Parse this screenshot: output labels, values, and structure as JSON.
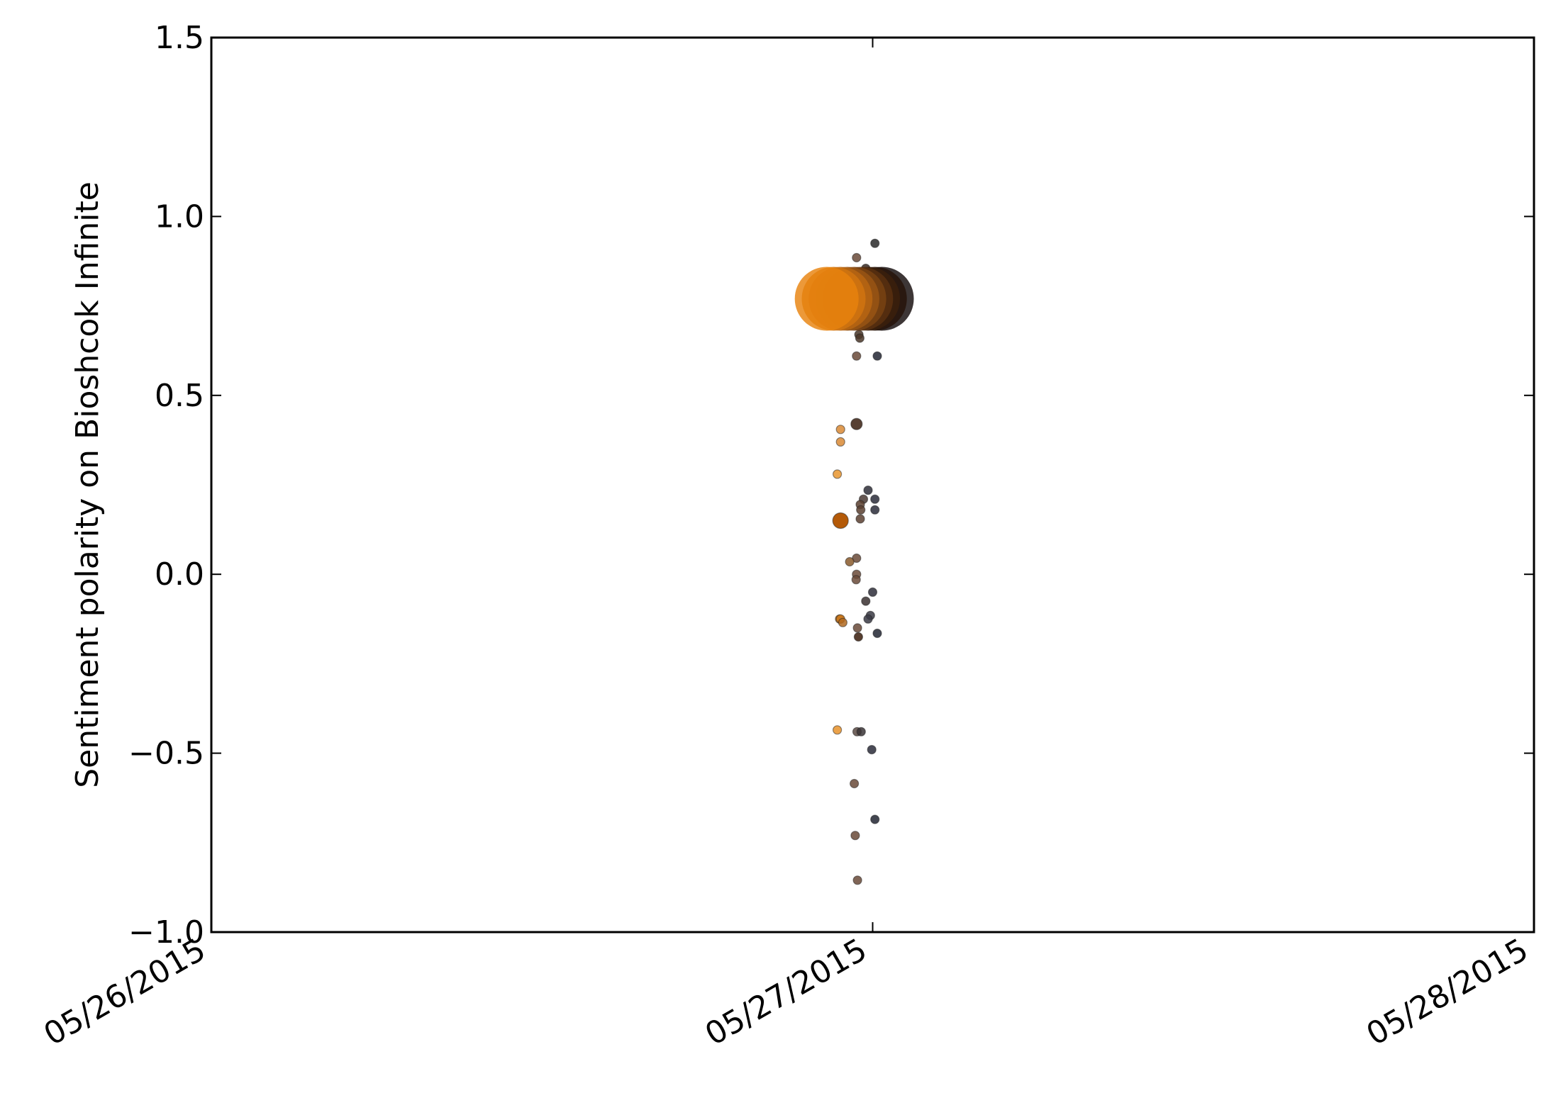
{
  "chart_data": {
    "type": "scatter",
    "title": "",
    "xlabel": "",
    "ylabel": "Sentiment polarity on Bioshcok Infinite",
    "xlim": [
      "05/26/2015 00:00",
      "05/28/2015 00:00"
    ],
    "ylim": [
      -1.0,
      1.5
    ],
    "xticks": [
      "05/26/2015",
      "05/27/2015",
      "05/28/2015"
    ],
    "yticks": [
      "1.5",
      "1.0",
      "0.5",
      "0.0",
      "−0.5",
      "−1.0"
    ],
    "grid": false,
    "legend": "none",
    "color_map": {
      "early": "#e8820e",
      "late": "#0a0a0a"
    },
    "points": [
      {
        "x": "05/26/2015 22:20",
        "y": 0.77,
        "size": "large",
        "color": "#e8820e"
      },
      {
        "x": "05/26/2015 22:35",
        "y": 0.77,
        "size": "large",
        "color": "#d27510"
      },
      {
        "x": "05/26/2015 22:50",
        "y": 0.77,
        "size": "large",
        "color": "#b96612"
      },
      {
        "x": "05/26/2015 23:05",
        "y": 0.77,
        "size": "large",
        "color": "#9a5514"
      },
      {
        "x": "05/26/2015 23:20",
        "y": 0.77,
        "size": "large",
        "color": "#7a4312"
      },
      {
        "x": "05/26/2015 23:35",
        "y": 0.77,
        "size": "large",
        "color": "#5a3110"
      },
      {
        "x": "05/26/2015 23:50",
        "y": 0.77,
        "size": "large",
        "color": "#3c200c"
      },
      {
        "x": "05/27/2015 00:05",
        "y": 0.77,
        "size": "large",
        "color": "#241208"
      },
      {
        "x": "05/27/2015 00:20",
        "y": 0.77,
        "size": "large",
        "color": "#120a0a"
      },
      {
        "x": "05/26/2015 23:25",
        "y": 0.885,
        "size": "small",
        "color": "#6a4a38"
      },
      {
        "x": "05/26/2015 23:45",
        "y": 0.855,
        "size": "small",
        "color": "#3a2a22"
      },
      {
        "x": "05/27/2015 00:05",
        "y": 0.925,
        "size": "small",
        "color": "#2a2a2a"
      },
      {
        "x": "05/26/2015 23:05",
        "y": 0.695,
        "size": "small",
        "color": "#7a4a20"
      },
      {
        "x": "05/26/2015 23:30",
        "y": 0.67,
        "size": "small",
        "color": "#4a3628"
      },
      {
        "x": "05/26/2015 23:32",
        "y": 0.66,
        "size": "small",
        "color": "#4a3628"
      },
      {
        "x": "05/26/2015 23:25",
        "y": 0.61,
        "size": "small",
        "color": "#6a4a38"
      },
      {
        "x": "05/27/2015 00:10",
        "y": 0.61,
        "size": "small",
        "color": "#222633"
      },
      {
        "x": "05/26/2015 23:25",
        "y": 0.42,
        "size": "medium",
        "color": "#3a2010"
      },
      {
        "x": "05/26/2015 22:50",
        "y": 0.405,
        "size": "small",
        "color": "#d98a35"
      },
      {
        "x": "05/26/2015 22:50",
        "y": 0.37,
        "size": "small",
        "color": "#d98a35"
      },
      {
        "x": "05/26/2015 22:43",
        "y": 0.28,
        "size": "small",
        "color": "#e8952f"
      },
      {
        "x": "05/26/2015 23:50",
        "y": 0.235,
        "size": "small",
        "color": "#2e2e38"
      },
      {
        "x": "05/27/2015 00:05",
        "y": 0.21,
        "size": "small",
        "color": "#2a2c3a"
      },
      {
        "x": "05/26/2015 23:40",
        "y": 0.21,
        "size": "small",
        "color": "#4a3a34"
      },
      {
        "x": "05/26/2015 23:33",
        "y": 0.195,
        "size": "small",
        "color": "#5a4030"
      },
      {
        "x": "05/26/2015 23:34",
        "y": 0.18,
        "size": "small",
        "color": "#5a4030"
      },
      {
        "x": "05/27/2015 00:05",
        "y": 0.18,
        "size": "small",
        "color": "#2a2c3a"
      },
      {
        "x": "05/26/2015 23:33",
        "y": 0.155,
        "size": "small",
        "color": "#5a4030"
      },
      {
        "x": "05/26/2015 22:50",
        "y": 0.15,
        "size": "large-dot",
        "color": "#b45a08"
      },
      {
        "x": "05/26/2015 23:25",
        "y": 0.045,
        "size": "small",
        "color": "#6a4a38"
      },
      {
        "x": "05/26/2015 23:10",
        "y": 0.035,
        "size": "small",
        "color": "#8a5a2c"
      },
      {
        "x": "05/26/2015 23:25",
        "y": 0.0,
        "size": "small",
        "color": "#6a4a38"
      },
      {
        "x": "05/26/2015 23:24",
        "y": -0.015,
        "size": "small",
        "color": "#6a4a38"
      },
      {
        "x": "05/27/2015 00:00",
        "y": -0.05,
        "size": "small",
        "color": "#2e2e3a"
      },
      {
        "x": "05/26/2015 23:45",
        "y": -0.075,
        "size": "small",
        "color": "#3a3030"
      },
      {
        "x": "05/26/2015 23:55",
        "y": -0.115,
        "size": "small",
        "color": "#3a3a44"
      },
      {
        "x": "05/26/2015 23:50",
        "y": -0.125,
        "size": "small",
        "color": "#3a3a44"
      },
      {
        "x": "05/26/2015 22:48",
        "y": -0.125,
        "size": "small",
        "color": "#c9751a"
      },
      {
        "x": "05/26/2015 22:50",
        "y": -0.125,
        "size": "small",
        "color": "#c9751a"
      },
      {
        "x": "05/26/2015 22:55",
        "y": -0.135,
        "size": "small",
        "color": "#b06820"
      },
      {
        "x": "05/26/2015 23:27",
        "y": -0.15,
        "size": "small",
        "color": "#6a4a38"
      },
      {
        "x": "05/27/2015 00:10",
        "y": -0.165,
        "size": "small",
        "color": "#222633"
      },
      {
        "x": "05/26/2015 23:29",
        "y": -0.175,
        "size": "small",
        "color": "#3a1c0a"
      },
      {
        "x": "05/26/2015 22:43",
        "y": -0.435,
        "size": "small",
        "color": "#e8922a"
      },
      {
        "x": "05/26/2015 23:26",
        "y": -0.44,
        "size": "small",
        "color": "#5a4a44"
      },
      {
        "x": "05/26/2015 23:35",
        "y": -0.44,
        "size": "small",
        "color": "#3a3436"
      },
      {
        "x": "05/26/2015 23:58",
        "y": -0.49,
        "size": "small",
        "color": "#2a2c3a"
      },
      {
        "x": "05/26/2015 23:20",
        "y": -0.585,
        "size": "small",
        "color": "#6a4a38"
      },
      {
        "x": "05/27/2015 00:05",
        "y": -0.685,
        "size": "small",
        "color": "#222633"
      },
      {
        "x": "05/26/2015 23:22",
        "y": -0.73,
        "size": "small",
        "color": "#6a4a38"
      },
      {
        "x": "05/26/2015 23:27",
        "y": -0.855,
        "size": "small",
        "color": "#6a4a38"
      }
    ]
  }
}
